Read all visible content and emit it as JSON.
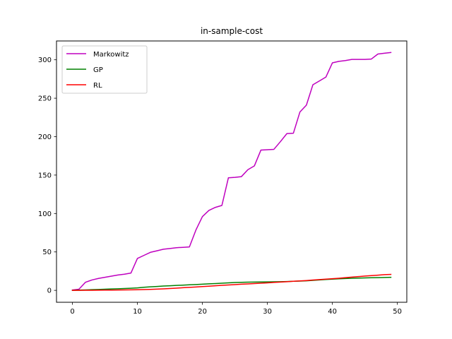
{
  "chart_data": {
    "type": "line",
    "title": "in-sample-cost",
    "xlabel": "",
    "ylabel": "",
    "xlim": [
      -2.45,
      51.45
    ],
    "ylim": [
      -15.5,
      324.5
    ],
    "x_ticks": [
      0,
      10,
      20,
      30,
      40,
      50
    ],
    "x_tick_labels": [
      "0",
      "10",
      "20",
      "30",
      "40",
      "50"
    ],
    "y_ticks": [
      0,
      50,
      100,
      150,
      200,
      250,
      300
    ],
    "y_tick_labels": [
      "0",
      "50",
      "100",
      "150",
      "200",
      "250",
      "300"
    ],
    "grid": false,
    "legend_position": "top-left",
    "x": [
      0,
      1,
      2,
      3,
      4,
      5,
      6,
      7,
      8,
      9,
      10,
      11,
      12,
      13,
      14,
      15,
      16,
      17,
      18,
      19,
      20,
      21,
      22,
      23,
      24,
      25,
      26,
      27,
      28,
      29,
      30,
      31,
      32,
      33,
      34,
      35,
      36,
      37,
      38,
      39,
      40,
      41,
      42,
      43,
      44,
      45,
      46,
      47,
      48,
      49
    ],
    "series": [
      {
        "name": "Markowitz",
        "color": "#bf00bf",
        "values": [
          0.5,
          1.5,
          10.5,
          13.5,
          15.5,
          17,
          18.5,
          20,
          21,
          22.5,
          41.5,
          45.5,
          49.5,
          51.5,
          53.5,
          54.5,
          55.5,
          56,
          56.5,
          78.5,
          96,
          104,
          108,
          110.5,
          146.5,
          147,
          148,
          157,
          162,
          182.5,
          183,
          183.5,
          193.5,
          204,
          204.5,
          232,
          241,
          267.5,
          272.5,
          277.5,
          296,
          298,
          299,
          300.5,
          300.5,
          300.5,
          301,
          307.5,
          308.5,
          309.5
        ]
      },
      {
        "name": "GP",
        "color": "#008000",
        "values": [
          0,
          0.3,
          0.6,
          0.9,
          1.2,
          1.5,
          1.8,
          2.1,
          2.4,
          2.8,
          3.2,
          4,
          4.6,
          5.1,
          5.6,
          6,
          6.4,
          6.8,
          7.2,
          7.6,
          8,
          8.5,
          8.9,
          9.3,
          9.8,
          10.2,
          10.5,
          10.7,
          10.8,
          10.9,
          11,
          11.1,
          11.3,
          11.5,
          11.8,
          12.1,
          12.4,
          13,
          13.6,
          14.1,
          14.6,
          15.1,
          15.4,
          15.7,
          16,
          16.2,
          16.4,
          16.6,
          16.8,
          17
        ]
      },
      {
        "name": "RL",
        "color": "#ff0000",
        "values": [
          0,
          0.05,
          0.1,
          0.15,
          0.2,
          0.3,
          0.4,
          0.5,
          0.6,
          0.7,
          0.85,
          1,
          1.3,
          1.6,
          2,
          2.4,
          2.9,
          3.4,
          3.9,
          4.4,
          4.9,
          5.4,
          6,
          6.5,
          7,
          7.5,
          8,
          8.4,
          8.8,
          9.3,
          9.8,
          10.3,
          10.8,
          11.3,
          11.8,
          12.3,
          12.8,
          13.4,
          14,
          14.6,
          15.2,
          15.8,
          16.5,
          17.2,
          17.9,
          18.6,
          19.2,
          19.8,
          20.4,
          20.8
        ]
      }
    ]
  }
}
